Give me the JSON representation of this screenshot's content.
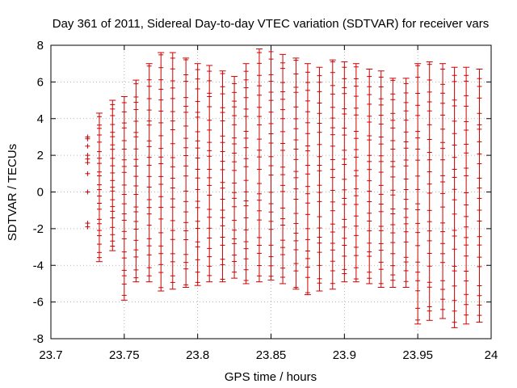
{
  "chart_data": {
    "type": "scatter",
    "title": "Day 361 of 2011, Sidereal Day-to-day VTEC variation (SDTVAR) for receiver vars",
    "xlabel": "GPS time / hours",
    "ylabel": "SDTVAR / TECUs",
    "xlim": [
      23.7,
      24.0
    ],
    "ylim": [
      -8,
      8
    ],
    "xticks": [
      23.7,
      23.75,
      23.8,
      23.85,
      23.9,
      23.95,
      24.0
    ],
    "xtick_labels": [
      "23.7",
      "23.75",
      "23.8",
      "23.85",
      "23.9",
      "23.95",
      "24"
    ],
    "yticks": [
      -8,
      -6,
      -4,
      -2,
      0,
      2,
      4,
      6,
      8
    ],
    "ytick_labels": [
      "-8",
      "-6",
      "-4",
      "-2",
      "0",
      "2",
      "4",
      "6",
      "8"
    ],
    "grid": true,
    "series_color": "#d00000",
    "errorbars": [
      {
        "x": 23.733,
        "low": -3.8,
        "high": 4.3
      },
      {
        "x": 23.742,
        "low": -3.2,
        "high": 5.0
      },
      {
        "x": 23.75,
        "low": -5.9,
        "high": 5.2
      },
      {
        "x": 23.758,
        "low": -4.9,
        "high": 6.1
      },
      {
        "x": 23.767,
        "low": -4.9,
        "high": 7.0
      },
      {
        "x": 23.775,
        "low": -5.4,
        "high": 7.6
      },
      {
        "x": 23.783,
        "low": -5.3,
        "high": 7.6
      },
      {
        "x": 23.792,
        "low": -5.2,
        "high": 7.3
      },
      {
        "x": 23.8,
        "low": -5.1,
        "high": 7.0
      },
      {
        "x": 23.808,
        "low": -4.9,
        "high": 6.9
      },
      {
        "x": 23.817,
        "low": -4.9,
        "high": 6.6
      },
      {
        "x": 23.825,
        "low": -4.7,
        "high": 6.3
      },
      {
        "x": 23.833,
        "low": -5.0,
        "high": 7.0
      },
      {
        "x": 23.842,
        "low": -4.9,
        "high": 7.8
      },
      {
        "x": 23.85,
        "low": -4.8,
        "high": 8.0
      },
      {
        "x": 23.858,
        "low": -5.0,
        "high": 7.5
      },
      {
        "x": 23.867,
        "low": -5.3,
        "high": 7.3
      },
      {
        "x": 23.875,
        "low": -5.6,
        "high": 7.0
      },
      {
        "x": 23.883,
        "low": -5.4,
        "high": 6.8
      },
      {
        "x": 23.892,
        "low": -5.3,
        "high": 7.2
      },
      {
        "x": 23.9,
        "low": -4.9,
        "high": 7.1
      },
      {
        "x": 23.908,
        "low": -4.9,
        "high": 7.0
      },
      {
        "x": 23.917,
        "low": -5.0,
        "high": 6.7
      },
      {
        "x": 23.925,
        "low": -5.2,
        "high": 6.6
      },
      {
        "x": 23.933,
        "low": -5.2,
        "high": 6.2
      },
      {
        "x": 23.942,
        "low": -5.2,
        "high": 6.2
      },
      {
        "x": 23.95,
        "low": -7.2,
        "high": 7.0
      },
      {
        "x": 23.958,
        "low": -7.0,
        "high": 7.1
      },
      {
        "x": 23.967,
        "low": -6.9,
        "high": 7.0
      },
      {
        "x": 23.975,
        "low": -7.4,
        "high": 6.8
      },
      {
        "x": 23.983,
        "low": -7.2,
        "high": 6.8
      },
      {
        "x": 23.992,
        "low": -7.1,
        "high": 6.7
      }
    ],
    "points": [
      {
        "x": 23.725,
        "y": 3.0
      },
      {
        "x": 23.725,
        "y": 2.9
      },
      {
        "x": 23.725,
        "y": 2.5
      },
      {
        "x": 23.725,
        "y": 2.0
      },
      {
        "x": 23.725,
        "y": 1.8
      },
      {
        "x": 23.725,
        "y": 1.6
      },
      {
        "x": 23.725,
        "y": 1.0
      },
      {
        "x": 23.725,
        "y": 0.0
      },
      {
        "x": 23.725,
        "y": -1.7
      },
      {
        "x": 23.725,
        "y": -1.9
      }
    ]
  }
}
